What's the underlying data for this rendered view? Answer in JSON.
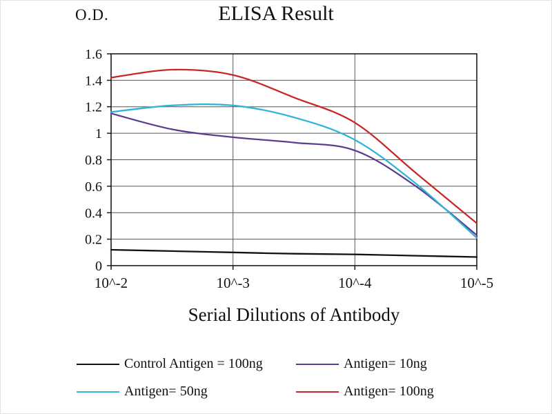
{
  "chart_data": {
    "type": "line",
    "title": "ELISA Result",
    "ylabel": "O.D.",
    "xlabel": "Serial Dilutions of Antibody",
    "x_tick_labels": [
      "10^-2",
      "10^-3",
      "10^-4",
      "10^-5"
    ],
    "y_tick_labels": [
      "0",
      "0.2",
      "0.4",
      "0.6",
      "0.8",
      "1",
      "1.2",
      "1.4",
      "1.6"
    ],
    "ylim": [
      0,
      1.6
    ],
    "grid": true,
    "legend_position": "bottom",
    "sample_x": [
      0,
      0.5,
      1,
      1.5,
      2,
      2.5,
      3
    ],
    "series": [
      {
        "name": "Control Antigen = 100ng",
        "color": "#111111",
        "values": [
          0.12,
          0.11,
          0.1,
          0.09,
          0.085,
          0.075,
          0.065
        ]
      },
      {
        "name": "Antigen= 10ng",
        "color": "#5a3c91",
        "values": [
          1.15,
          1.03,
          0.97,
          0.93,
          0.87,
          0.6,
          0.23
        ]
      },
      {
        "name": "Antigen= 50ng",
        "color": "#2fb3d6",
        "values": [
          1.16,
          1.21,
          1.21,
          1.12,
          0.95,
          0.62,
          0.21
        ]
      },
      {
        "name": "Antigen= 100ng",
        "color": "#c82727",
        "values": [
          1.42,
          1.48,
          1.44,
          1.27,
          1.08,
          0.7,
          0.32
        ]
      }
    ]
  }
}
